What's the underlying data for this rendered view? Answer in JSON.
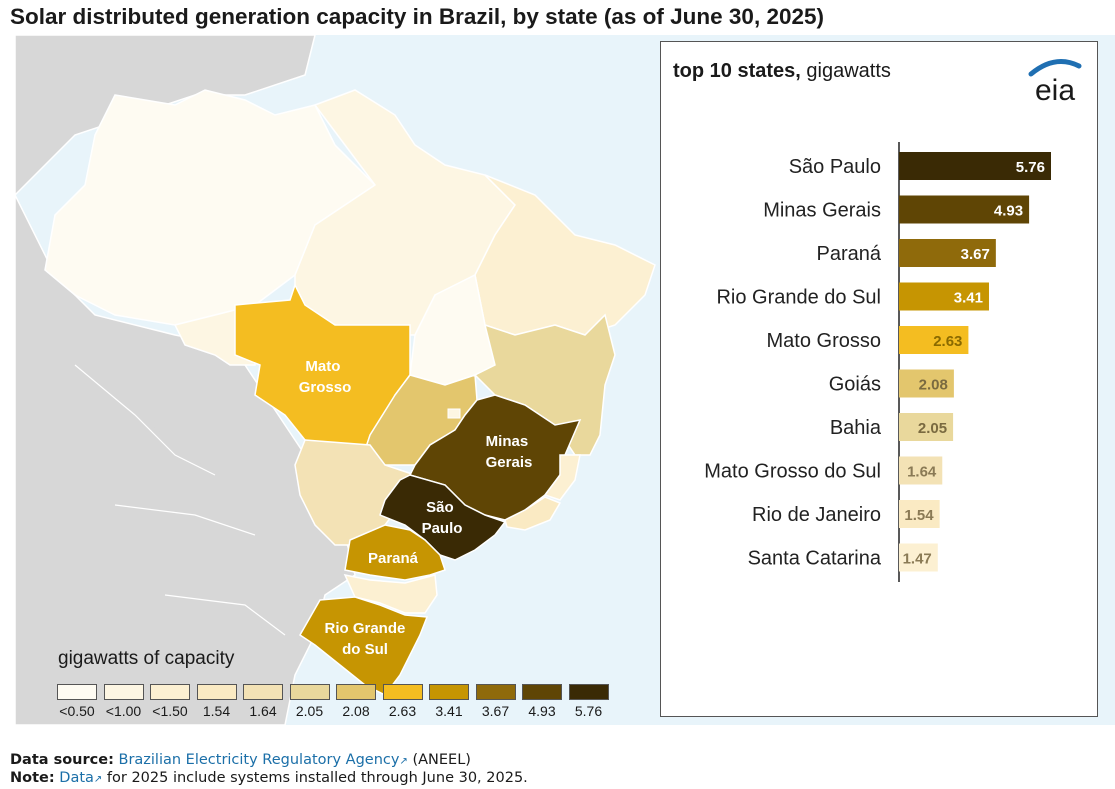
{
  "title": "Solar distributed generation capacity in Brazil, by state (as of June 30, 2025)",
  "map": {
    "labels": {
      "mato_grosso": [
        "Mato",
        "Grosso"
      ],
      "minas_gerais": [
        "Minas",
        "Gerais"
      ],
      "sao_paulo": [
        "São",
        "Paulo"
      ],
      "parana": [
        "Paraná"
      ],
      "rio_grande_do_sul": [
        "Rio Grande",
        "do Sul"
      ]
    }
  },
  "legend": {
    "title": "gigawatts of capacity",
    "items": [
      {
        "label": "<0.50",
        "color": "#fefbf2"
      },
      {
        "label": "<1.00",
        "color": "#fdf6e3"
      },
      {
        "label": "<1.50",
        "color": "#fcf0d2"
      },
      {
        "label": "1.54",
        "color": "#faeac3"
      },
      {
        "label": "1.64",
        "color": "#f3e2b5"
      },
      {
        "label": "2.05",
        "color": "#e9d89c"
      },
      {
        "label": "2.08",
        "color": "#e3c66d"
      },
      {
        "label": "2.63",
        "color": "#f4bd21"
      },
      {
        "label": "3.41",
        "color": "#c69502"
      },
      {
        "label": "3.67",
        "color": "#8f6a0b"
      },
      {
        "label": "4.93",
        "color": "#5f4505"
      },
      {
        "label": "5.76",
        "color": "#3a2a05"
      }
    ]
  },
  "chart_data": {
    "type": "bar",
    "orientation": "horizontal",
    "title": "top 10 states, gigawatts",
    "title_bold": "top 10 states,",
    "title_rest": "gigawatts",
    "categories": [
      "São Paulo",
      "Minas Gerais",
      "Paraná",
      "Rio Grande do Sul",
      "Mato Grosso",
      "Goiás",
      "Bahia",
      "Mato Grosso do Sul",
      "Rio de Janeiro",
      "Santa Catarina"
    ],
    "values": [
      5.76,
      4.93,
      3.67,
      3.41,
      2.63,
      2.08,
      2.05,
      1.64,
      1.54,
      1.47
    ],
    "value_labels": [
      "5.76",
      "4.93",
      "3.67",
      "3.41",
      "2.63",
      "2.08",
      "2.05",
      "1.64",
      "1.54",
      "1.47"
    ],
    "colors": [
      "#3a2a05",
      "#5f4505",
      "#8f6a0b",
      "#c69502",
      "#f4bd21",
      "#e3c66d",
      "#e9d89c",
      "#f3e2b5",
      "#faeac3",
      "#fcf0d2"
    ],
    "label_colors": [
      "#ffffff",
      "#ffffff",
      "#ffffff",
      "#ffffff",
      "#8a6a00",
      "#7a6a40",
      "#7a6a40",
      "#8a7a55",
      "#8a7a55",
      "#8a7a55"
    ],
    "xlim": [
      0,
      6
    ],
    "xlabel": "",
    "ylabel": ""
  },
  "logo": "eia",
  "footer": {
    "source_label": "Data source:",
    "source_link": "Brazilian Electricity Regulatory Agency",
    "source_rest": "(ANEEL)",
    "note_label": "Note:",
    "note_link": "Data",
    "note_rest": "for 2025 include systems installed through June 30, 2025.",
    "ext_icon": "external-link-icon"
  }
}
